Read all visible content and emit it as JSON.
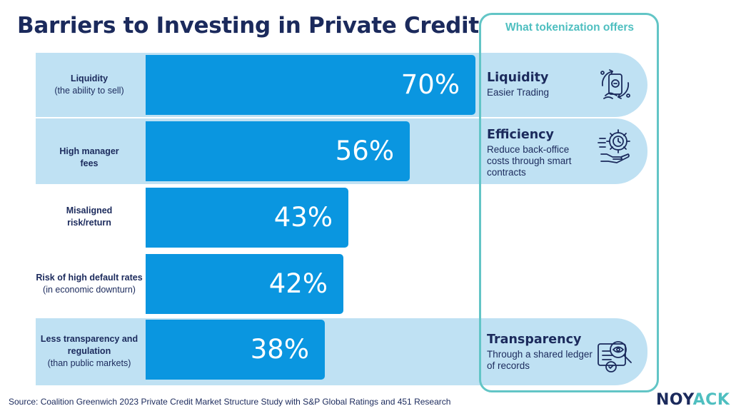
{
  "title": "Barriers to Investing in Private Credit",
  "chart_data": {
    "type": "bar",
    "orientation": "horizontal",
    "title": "Barriers to Investing in Private Credit",
    "categories": [
      "Liquidity (the ability to sell)",
      "High manager fees",
      "Misaligned risk/return",
      "Risk of high default rates (in economic downturn)",
      "Less transparency and regulation (than public markets)"
    ],
    "values": [
      70,
      56,
      43,
      42,
      38
    ],
    "value_labels": [
      "70%",
      "56%",
      "43%",
      "42%",
      "38%"
    ],
    "unit": "%",
    "xlim": [
      0,
      100
    ]
  },
  "rows": [
    {
      "label_bold": "Liquidity",
      "label_normal": "(the ability to sell)"
    },
    {
      "label_bold": "High manager fees",
      "label_normal": ""
    },
    {
      "label_bold": "Misaligned risk/return",
      "label_normal": ""
    },
    {
      "label_bold": "Risk of high default rates",
      "label_normal": "(in economic downturn)"
    },
    {
      "label_bold": "Less transparency and regulation",
      "label_normal": "(than public markets)"
    }
  ],
  "tokenization": {
    "heading": "What tokenization offers",
    "offers": [
      {
        "name": "Liquidity",
        "description": "Easier Trading",
        "icon": "phone-exchange-icon"
      },
      {
        "name": "Efficiency",
        "description": "Reduce back-office costs through smart contracts",
        "icon": "gear-clock-hand-icon"
      },
      {
        "name": "Transparency",
        "description": "Through a shared ledger of records",
        "icon": "magnifier-eye-document-icon"
      }
    ]
  },
  "source": "Source: Coalition Greenwich 2023 Private Credit Market Structure Study with S&P Global Ratings and 451 Research",
  "logo": {
    "part1": "NOY",
    "part2": "ACK"
  },
  "colors": {
    "bar": "#0a96e0",
    "strip": "#bfe1f3",
    "title": "#1b2a5c",
    "accent": "#4fbfc0"
  }
}
